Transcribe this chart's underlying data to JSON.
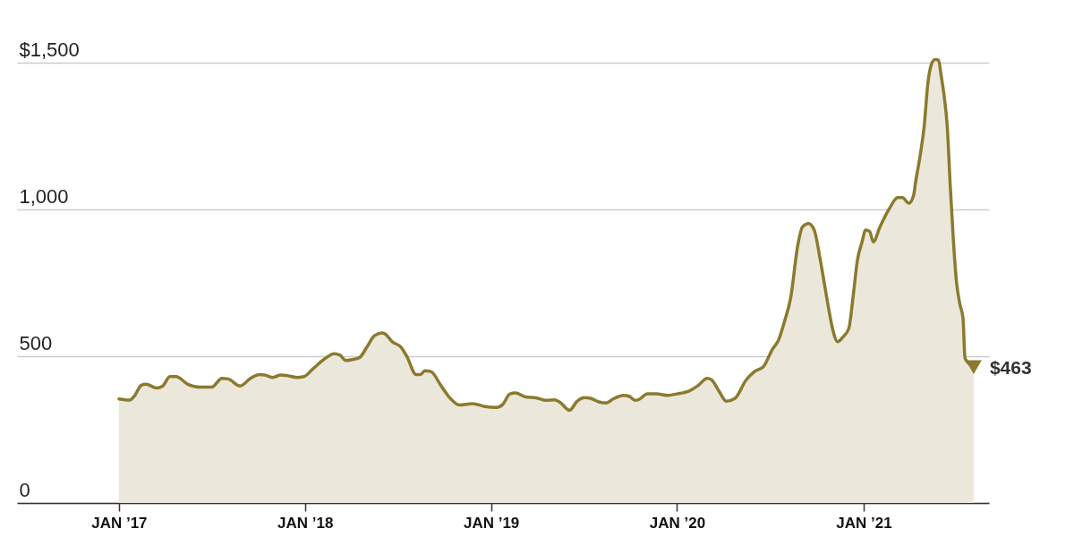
{
  "chart_data": {
    "type": "area",
    "xlim": [
      "2016-06-15",
      "2021-09-04"
    ],
    "xticks": [
      {
        "value": "2017-01-01",
        "label": "JAN ’17"
      },
      {
        "value": "2018-01-01",
        "label": "JAN ’18"
      },
      {
        "value": "2019-01-01",
        "label": "JAN ’19"
      },
      {
        "value": "2020-01-01",
        "label": "JAN ’20"
      },
      {
        "value": "2021-01-01",
        "label": "JAN ’21"
      }
    ],
    "ylim": [
      0,
      1715
    ],
    "yticks": [
      0,
      {
        "value": 500,
        "label": "500"
      },
      {
        "value": 1000,
        "label": "1,000"
      },
      {
        "value": 1500,
        "label": "$1,500"
      }
    ],
    "grid": "y",
    "series": [
      {
        "color": "#8b7a2e",
        "x": [
          "2017-01-01",
          "2017-01-22",
          "2017-01-31",
          "2017-02-14",
          "2017-02-23",
          "2017-03-16",
          "2017-03-28",
          "2017-04-11",
          "2017-04-23",
          "2017-05-16",
          "2017-06-09",
          "2017-07-02",
          "2017-07-22",
          "2017-08-03",
          "2017-08-27",
          "2017-09-16",
          "2017-10-04",
          "2017-10-15",
          "2017-10-30",
          "2017-11-14",
          "2017-11-25",
          "2017-12-16",
          "2017-12-30",
          "2018-01-17",
          "2018-02-09",
          "2018-02-27",
          "2018-03-11",
          "2018-03-22",
          "2018-04-03",
          "2018-04-18",
          "2018-05-02",
          "2018-05-17",
          "2018-06-01",
          "2018-06-06",
          "2018-06-21",
          "2018-07-09",
          "2018-07-20",
          "2018-08-07",
          "2018-08-16",
          "2018-08-24",
          "2018-09-05",
          "2018-09-26",
          "2018-10-13",
          "2018-10-31",
          "2018-11-26",
          "2018-12-20",
          "2019-01-12",
          "2019-01-24",
          "2019-02-07",
          "2019-02-18",
          "2019-03-09",
          "2019-04-01",
          "2019-04-19",
          "2019-05-06",
          "2019-05-18",
          "2019-06-04",
          "2019-06-19",
          "2019-07-04",
          "2019-07-15",
          "2019-08-02",
          "2019-08-14",
          "2019-08-31",
          "2019-09-18",
          "2019-09-29",
          "2019-10-11",
          "2019-10-17",
          "2019-11-04",
          "2019-11-21",
          "2019-12-15",
          "2020-01-01",
          "2020-01-25",
          "2020-02-11",
          "2020-02-29",
          "2020-03-08",
          "2020-03-23",
          "2020-04-07",
          "2020-04-24",
          "2020-05-15",
          "2020-06-01",
          "2020-06-19",
          "2020-07-06",
          "2020-07-18",
          "2020-07-30",
          "2020-08-11",
          "2020-08-25",
          "2020-09-03",
          "2020-09-15",
          "2020-09-26",
          "2020-10-08",
          "2020-10-23",
          "2020-11-01",
          "2020-11-11",
          "2020-11-21",
          "2020-12-03",
          "2020-12-11",
          "2020-12-20",
          "2020-12-29",
          "2021-01-05",
          "2021-01-13",
          "2021-01-20",
          "2021-02-02",
          "2021-02-20",
          "2021-03-09",
          "2021-03-18",
          "2021-03-31",
          "2021-04-09",
          "2021-04-13",
          "2021-04-22",
          "2021-04-30",
          "2021-05-07",
          "2021-05-14",
          "2021-05-21",
          "2021-05-28",
          "2021-06-02",
          "2021-06-08",
          "2021-06-14",
          "2021-06-20",
          "2021-06-26",
          "2021-07-02",
          "2021-07-09",
          "2021-07-15",
          "2021-07-19",
          "2021-07-28",
          "2021-08-05"
        ],
        "values": [
          355,
          351,
          364,
          402,
          405,
          392,
          399,
          431,
          431,
          405,
          395,
          395,
          425,
          423,
          399,
          425,
          438,
          436,
          428,
          436,
          435,
          428,
          431,
          458,
          492,
          509,
          504,
          486,
          489,
          496,
          530,
          570,
          580,
          578,
          550,
          530,
          499,
          438,
          438,
          451,
          448,
          397,
          357,
          334,
          339,
          329,
          326,
          336,
          372,
          375,
          362,
          358,
          350,
          352,
          341,
          316,
          347,
          359,
          357,
          344,
          341,
          357,
          367,
          364,
          350,
          352,
          372,
          372,
          367,
          372,
          382,
          400,
          425,
          421,
          382,
          347,
          357,
          418,
          448,
          466,
          524,
          555,
          620,
          700,
          880,
          941,
          953,
          931,
          829,
          677,
          595,
          550,
          565,
          595,
          697,
          829,
          890,
          931,
          926,
          890,
          941,
          1002,
          1041,
          1041,
          1022,
          1048,
          1094,
          1185,
          1287,
          1429,
          1495,
          1512,
          1510,
          1459,
          1388,
          1287,
          1083,
          900,
          758,
          677,
          631,
          494,
          473,
          463
        ]
      },
      {
        "type": "scatter",
        "color": "#8b7a2e",
        "marker": "triangle",
        "x": [
          "2021-08-05"
        ],
        "values": [
          463
        ]
      }
    ],
    "annotations": [
      {
        "text": "$463",
        "x": "2021-08-05",
        "y": 463
      }
    ]
  }
}
